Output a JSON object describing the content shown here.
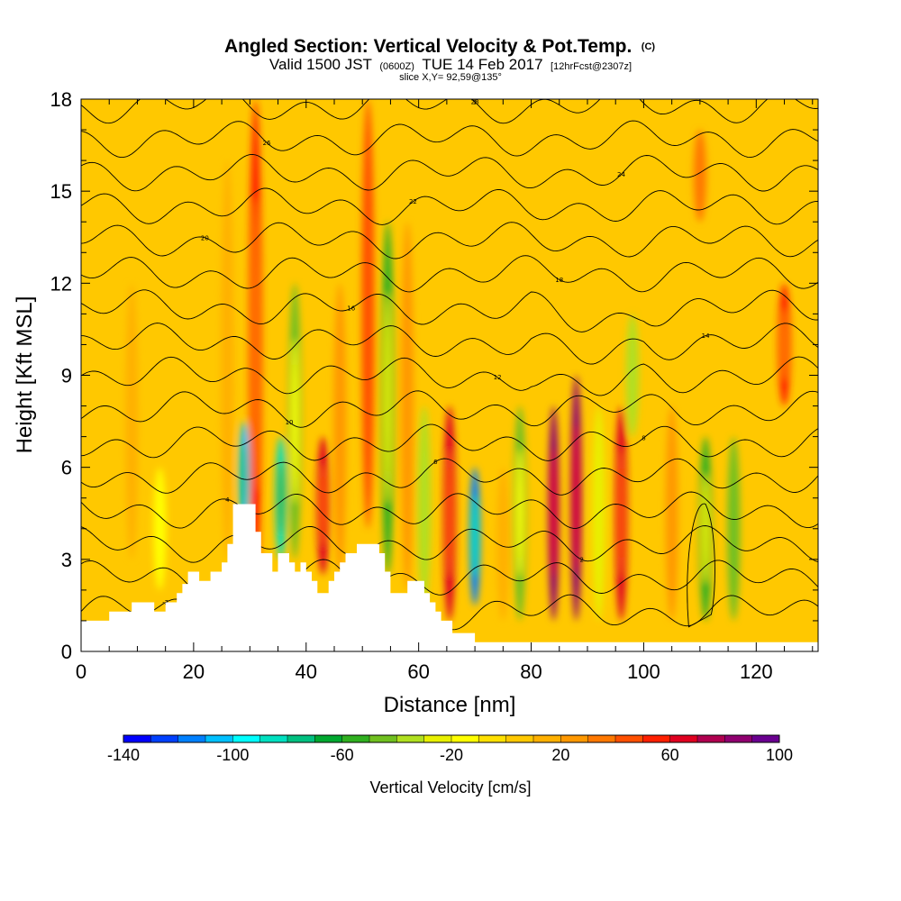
{
  "title": {
    "main": "Angled Section: Vertical Velocity & Pot.Temp.",
    "unit_tag": "(C)",
    "valid_prefix": "Valid 1500 JST",
    "valid_utc": "(0600Z)",
    "valid_date": "TUE 14 Feb 2017",
    "forecast": "[12hrFcst@2307z]",
    "slice": "slice X,Y= 92,59@135°"
  },
  "chart_data": {
    "type": "heatmap",
    "title": "Angled Section: Vertical Velocity & Pot.Temp.",
    "xlabel": "Distance [nm]",
    "ylabel": "Height [Kft MSL]",
    "xlim": [
      0,
      131
    ],
    "ylim": [
      0,
      18
    ],
    "x_ticks": [
      0,
      20,
      40,
      60,
      80,
      100,
      120
    ],
    "x_ticklabels": [
      "0",
      "20",
      "40",
      "60",
      "80",
      "100",
      "120"
    ],
    "y_ticks": [
      0,
      3,
      6,
      9,
      12,
      15,
      18
    ],
    "y_ticklabels": [
      "0",
      "3",
      "6",
      "9",
      "12",
      "15",
      "18"
    ],
    "colorbar": {
      "label": "Vertical Velocity [cm/s]",
      "min": -140,
      "max": 100,
      "step": 10,
      "ticks": [
        -140,
        -100,
        -60,
        -20,
        20,
        60,
        100
      ],
      "ticklabels": [
        "-140",
        "-100",
        "-60",
        "-20",
        "20",
        "60",
        "100"
      ],
      "colors": [
        "#0000ff",
        "#0040ff",
        "#0080ff",
        "#00c0ff",
        "#00ffff",
        "#00e0c0",
        "#00c080",
        "#00a830",
        "#30b020",
        "#70c020",
        "#b0e020",
        "#e8f000",
        "#ffff00",
        "#ffe000",
        "#ffc800",
        "#ffb000",
        "#ff9800",
        "#ff7800",
        "#ff5000",
        "#ff2000",
        "#e00020",
        "#b00050",
        "#900070",
        "#6a0090"
      ]
    },
    "vertical_velocity_features": [
      {
        "x": 9,
        "z": [
          3,
          12
        ],
        "w": 15
      },
      {
        "x": 14,
        "z": [
          2,
          6
        ],
        "w": -20
      },
      {
        "x": 26,
        "z": [
          3,
          16
        ],
        "w": 15
      },
      {
        "x": 29,
        "z": [
          4,
          7.5
        ],
        "w": -110
      },
      {
        "x": 31,
        "z": [
          2,
          18
        ],
        "w": 55
      },
      {
        "x": 35.5,
        "z": [
          3,
          7
        ],
        "w": -90
      },
      {
        "x": 38,
        "z": [
          3,
          12
        ],
        "w": -50
      },
      {
        "x": 43,
        "z": [
          2.5,
          7
        ],
        "w": 65
      },
      {
        "x": 46,
        "z": [
          2.5,
          12
        ],
        "w": 20
      },
      {
        "x": 51,
        "z": [
          4,
          18
        ],
        "w": 45
      },
      {
        "x": 54.5,
        "z": [
          2.5,
          14
        ],
        "w": -60
      },
      {
        "x": 58,
        "z": [
          2,
          14
        ],
        "w": 20
      },
      {
        "x": 61,
        "z": [
          1.5,
          8
        ],
        "w": -40
      },
      {
        "x": 65.5,
        "z": [
          1,
          8
        ],
        "w": 60
      },
      {
        "x": 70,
        "z": [
          1.5,
          6
        ],
        "w": -120
      },
      {
        "x": 75,
        "z": [
          1,
          6
        ],
        "w": 15
      },
      {
        "x": 78,
        "z": [
          1,
          8
        ],
        "w": -50
      },
      {
        "x": 84,
        "z": [
          1,
          8
        ],
        "w": 85
      },
      {
        "x": 88,
        "z": [
          1,
          9
        ],
        "w": 80
      },
      {
        "x": 92,
        "z": [
          1,
          8
        ],
        "w": -30
      },
      {
        "x": 96,
        "z": [
          1,
          8
        ],
        "w": 65
      },
      {
        "x": 98,
        "z": [
          7,
          11
        ],
        "w": -40
      },
      {
        "x": 105,
        "z": [
          1,
          8
        ],
        "w": 25
      },
      {
        "x": 111,
        "z": [
          1,
          7
        ],
        "w": -55
      },
      {
        "x": 116,
        "z": [
          1,
          7
        ],
        "w": -45
      },
      {
        "x": 125,
        "z": [
          8,
          12
        ],
        "w": 50
      },
      {
        "x": 110,
        "z": [
          14,
          17
        ],
        "w": 30
      }
    ],
    "terrain": [
      [
        0,
        1
      ],
      [
        5,
        1
      ],
      [
        5,
        1.3
      ],
      [
        9,
        1.3
      ],
      [
        9,
        1.6
      ],
      [
        13,
        1.6
      ],
      [
        13,
        1.3
      ],
      [
        15,
        1.3
      ],
      [
        15,
        1.6
      ],
      [
        17,
        1.6
      ],
      [
        17,
        1.9
      ],
      [
        18,
        1.9
      ],
      [
        18,
        2.2
      ],
      [
        19,
        2.2
      ],
      [
        19,
        2.6
      ],
      [
        21,
        2.6
      ],
      [
        21,
        2.3
      ],
      [
        23,
        2.3
      ],
      [
        23,
        2.6
      ],
      [
        25,
        2.6
      ],
      [
        25,
        2.9
      ],
      [
        26,
        2.9
      ],
      [
        26,
        3.5
      ],
      [
        27,
        3.5
      ],
      [
        27,
        4.8
      ],
      [
        31,
        4.8
      ],
      [
        31,
        3.9
      ],
      [
        32,
        3.9
      ],
      [
        32,
        3.2
      ],
      [
        34,
        3.2
      ],
      [
        34,
        2.6
      ],
      [
        35,
        2.6
      ],
      [
        35,
        3.2
      ],
      [
        37,
        3.2
      ],
      [
        37,
        2.9
      ],
      [
        38,
        2.9
      ],
      [
        38,
        2.6
      ],
      [
        39,
        2.6
      ],
      [
        39,
        2.9
      ],
      [
        40,
        2.9
      ],
      [
        40,
        2.6
      ],
      [
        41,
        2.6
      ],
      [
        41,
        2.3
      ],
      [
        42,
        2.3
      ],
      [
        42,
        1.9
      ],
      [
        44,
        1.9
      ],
      [
        44,
        2.3
      ],
      [
        45,
        2.3
      ],
      [
        45,
        2.6
      ],
      [
        46,
        2.6
      ],
      [
        46,
        2.9
      ],
      [
        47,
        2.9
      ],
      [
        47,
        3.2
      ],
      [
        49,
        3.2
      ],
      [
        49,
        3.5
      ],
      [
        53,
        3.5
      ],
      [
        53,
        3.2
      ],
      [
        54,
        3.2
      ],
      [
        54,
        2.6
      ],
      [
        55,
        2.6
      ],
      [
        55,
        1.9
      ],
      [
        58,
        1.9
      ],
      [
        58,
        2.3
      ],
      [
        61,
        2.3
      ],
      [
        61,
        1.9
      ],
      [
        62,
        1.9
      ],
      [
        62,
        1.6
      ],
      [
        63,
        1.6
      ],
      [
        63,
        1.3
      ],
      [
        64,
        1.3
      ],
      [
        64,
        1
      ],
      [
        66,
        1
      ],
      [
        66,
        0.6
      ],
      [
        70,
        0.6
      ],
      [
        70,
        0.3
      ],
      [
        82,
        0.3
      ],
      [
        82,
        0.3
      ],
      [
        131,
        0.3
      ]
    ],
    "theta_contour_labels": [
      "-2",
      "0",
      "2",
      "4",
      "6",
      "8",
      "10",
      "12",
      "14",
      "16",
      "18",
      "20",
      "22",
      "24",
      "26",
      "28"
    ]
  }
}
